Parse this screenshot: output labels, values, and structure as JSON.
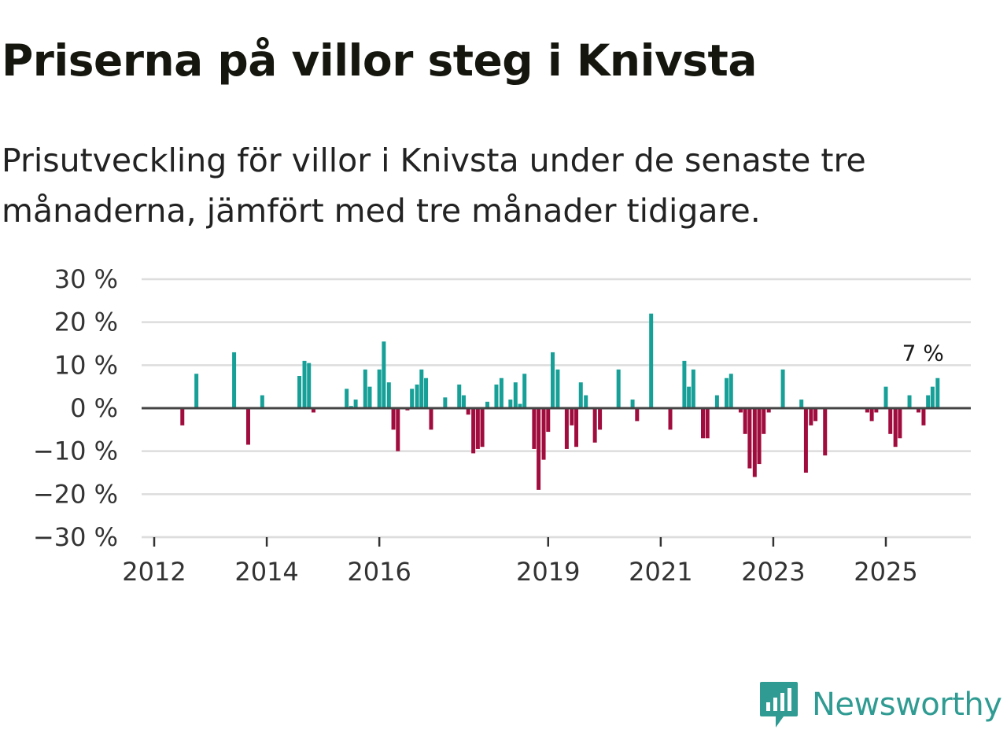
{
  "title": "Priserna på villor steg i Knivsta",
  "subtitle": "Prisutveckling för villor i Knivsta under de senaste tre månaderna, jämfört med tre månader tidigare.",
  "brand": {
    "name": "Newsworthy",
    "color": "#2f9b92"
  },
  "colors": {
    "positive": "#16a097",
    "negative": "#a00c3d",
    "grid": "#dddddd",
    "zero": "#444444"
  },
  "chart_data": {
    "type": "bar",
    "x_unit": "year (decimal)",
    "ylim": [
      -30,
      30
    ],
    "yticks": [
      30,
      20,
      10,
      0,
      -10,
      -20,
      -30
    ],
    "ytick_labels": [
      "30 %",
      "20 %",
      "10 %",
      "0 %",
      "−10 %",
      "−20 %",
      "−30 %"
    ],
    "xlim": [
      2011.9,
      2026.5
    ],
    "xticks": [
      2012,
      2014,
      2016,
      2019,
      2021,
      2023,
      2025
    ],
    "xtick_labels": [
      "2012",
      "2014",
      "2016",
      "2019",
      "2021",
      "2023",
      "2025"
    ],
    "annotation": {
      "text": "7 %",
      "x": 2025.8,
      "value": 7
    },
    "bars": [
      {
        "x": 2012.5,
        "value": -4
      },
      {
        "x": 2012.75,
        "value": 8
      },
      {
        "x": 2013.42,
        "value": 13
      },
      {
        "x": 2013.67,
        "value": -8.5
      },
      {
        "x": 2013.92,
        "value": 3
      },
      {
        "x": 2014.58,
        "value": 7.5
      },
      {
        "x": 2014.67,
        "value": 11
      },
      {
        "x": 2014.75,
        "value": 10.5
      },
      {
        "x": 2014.83,
        "value": -1
      },
      {
        "x": 2015.42,
        "value": 4.5
      },
      {
        "x": 2015.5,
        "value": 0.5
      },
      {
        "x": 2015.58,
        "value": 2
      },
      {
        "x": 2015.75,
        "value": 9
      },
      {
        "x": 2015.83,
        "value": 5
      },
      {
        "x": 2016.0,
        "value": 9
      },
      {
        "x": 2016.08,
        "value": 15.5
      },
      {
        "x": 2016.17,
        "value": 6
      },
      {
        "x": 2016.25,
        "value": -5
      },
      {
        "x": 2016.33,
        "value": -10
      },
      {
        "x": 2016.5,
        "value": -0.5
      },
      {
        "x": 2016.58,
        "value": 4.5
      },
      {
        "x": 2016.67,
        "value": 5.5
      },
      {
        "x": 2016.75,
        "value": 9
      },
      {
        "x": 2016.83,
        "value": 7
      },
      {
        "x": 2016.92,
        "value": -5
      },
      {
        "x": 2017.17,
        "value": 2.5
      },
      {
        "x": 2017.42,
        "value": 5.5
      },
      {
        "x": 2017.5,
        "value": 3
      },
      {
        "x": 2017.58,
        "value": -1.5
      },
      {
        "x": 2017.67,
        "value": -10.5
      },
      {
        "x": 2017.75,
        "value": -9.5
      },
      {
        "x": 2017.83,
        "value": -9
      },
      {
        "x": 2017.92,
        "value": 1.5
      },
      {
        "x": 2018.08,
        "value": 5.5
      },
      {
        "x": 2018.17,
        "value": 7
      },
      {
        "x": 2018.33,
        "value": 2
      },
      {
        "x": 2018.42,
        "value": 6
      },
      {
        "x": 2018.5,
        "value": 1
      },
      {
        "x": 2018.58,
        "value": 8
      },
      {
        "x": 2018.75,
        "value": -9.5
      },
      {
        "x": 2018.83,
        "value": -19
      },
      {
        "x": 2018.92,
        "value": -12
      },
      {
        "x": 2019.0,
        "value": -5.5
      },
      {
        "x": 2019.08,
        "value": 13
      },
      {
        "x": 2019.17,
        "value": 9
      },
      {
        "x": 2019.33,
        "value": -9.5
      },
      {
        "x": 2019.42,
        "value": -4
      },
      {
        "x": 2019.5,
        "value": -9
      },
      {
        "x": 2019.58,
        "value": 6
      },
      {
        "x": 2019.67,
        "value": 3
      },
      {
        "x": 2019.83,
        "value": -8
      },
      {
        "x": 2019.92,
        "value": -5
      },
      {
        "x": 2020.25,
        "value": 9
      },
      {
        "x": 2020.5,
        "value": 2
      },
      {
        "x": 2020.58,
        "value": -3
      },
      {
        "x": 2020.83,
        "value": 22
      },
      {
        "x": 2021.17,
        "value": -5
      },
      {
        "x": 2021.42,
        "value": 11
      },
      {
        "x": 2021.5,
        "value": 5
      },
      {
        "x": 2021.58,
        "value": 9
      },
      {
        "x": 2021.75,
        "value": -7
      },
      {
        "x": 2021.83,
        "value": -7
      },
      {
        "x": 2022.0,
        "value": 3
      },
      {
        "x": 2022.17,
        "value": 7
      },
      {
        "x": 2022.25,
        "value": 8
      },
      {
        "x": 2022.42,
        "value": -1
      },
      {
        "x": 2022.5,
        "value": -6
      },
      {
        "x": 2022.58,
        "value": -14
      },
      {
        "x": 2022.67,
        "value": -16
      },
      {
        "x": 2022.75,
        "value": -13
      },
      {
        "x": 2022.83,
        "value": -6
      },
      {
        "x": 2022.92,
        "value": -1
      },
      {
        "x": 2023.17,
        "value": 9
      },
      {
        "x": 2023.5,
        "value": 2
      },
      {
        "x": 2023.58,
        "value": -15
      },
      {
        "x": 2023.67,
        "value": -4
      },
      {
        "x": 2023.75,
        "value": -3
      },
      {
        "x": 2023.92,
        "value": -11
      },
      {
        "x": 2024.67,
        "value": -1
      },
      {
        "x": 2024.75,
        "value": -3
      },
      {
        "x": 2024.83,
        "value": -1
      },
      {
        "x": 2025.0,
        "value": 5
      },
      {
        "x": 2025.08,
        "value": -6
      },
      {
        "x": 2025.17,
        "value": -9
      },
      {
        "x": 2025.25,
        "value": -7
      },
      {
        "x": 2025.42,
        "value": 3
      },
      {
        "x": 2025.58,
        "value": -1
      },
      {
        "x": 2025.67,
        "value": -4
      },
      {
        "x": 2025.75,
        "value": 3
      },
      {
        "x": 2025.83,
        "value": 5
      },
      {
        "x": 2025.92,
        "value": 7
      }
    ]
  }
}
